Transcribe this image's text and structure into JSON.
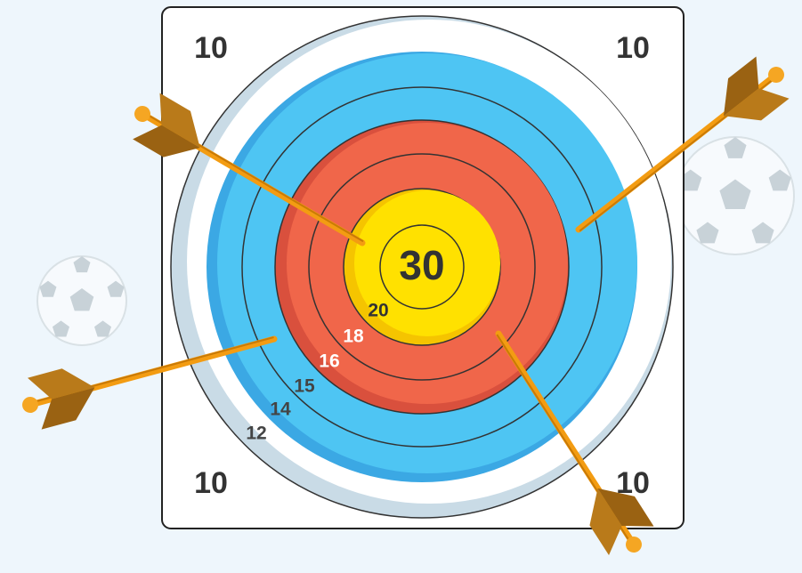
{
  "board": {
    "corner_scores": [
      10,
      10,
      10,
      10
    ],
    "center_score": 30,
    "ring_scores": [
      20,
      18,
      16,
      15,
      14,
      12
    ]
  }
}
